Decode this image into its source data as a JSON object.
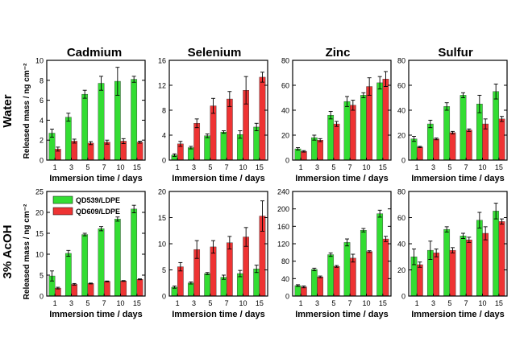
{
  "figure": {
    "columns": [
      "Cadmium",
      "Selenium",
      "Zinc",
      "Sulfur"
    ],
    "rows": [
      "Water",
      "3% AcOH"
    ],
    "xlabel": "Immersion time / days",
    "ylabel": "Released mass / ng cm⁻²",
    "legend": [
      "QD539/LDPE",
      "QD609/LDPE"
    ],
    "colors": {
      "green": "#33dd33",
      "red": "#ee3333",
      "axis": "#000000"
    }
  },
  "chart_data": [
    {
      "type": "bar",
      "title": "Cadmium",
      "row": "Water",
      "ylabel": "Released mass / ng cm⁻²",
      "xlabel": "Immersion time / days",
      "categories": [
        "1",
        "3",
        "5",
        "7",
        "10",
        "15"
      ],
      "ylim": [
        0,
        10
      ],
      "yticks": [
        0,
        2,
        4,
        6,
        8,
        10
      ],
      "series": [
        {
          "name": "QD539/LDPE",
          "values": [
            2.7,
            4.3,
            6.6,
            7.7,
            7.9,
            8.1
          ],
          "errors": [
            0.4,
            0.4,
            0.4,
            0.7,
            1.4,
            0.3
          ]
        },
        {
          "name": "QD609/LDPE",
          "values": [
            1.1,
            1.9,
            1.7,
            1.8,
            1.9,
            1.8
          ],
          "errors": [
            0.2,
            0.2,
            0.15,
            0.2,
            0.25,
            0.1
          ]
        }
      ]
    },
    {
      "type": "bar",
      "title": "Selenium",
      "row": "Water",
      "xlabel": "Immersion time / days",
      "categories": [
        "1",
        "3",
        "5",
        "7",
        "10",
        "15"
      ],
      "ylim": [
        0,
        16
      ],
      "yticks": [
        0,
        4,
        8,
        12,
        16
      ],
      "series": [
        {
          "name": "QD539/LDPE",
          "values": [
            0.8,
            2.0,
            3.9,
            4.5,
            4.1,
            5.3
          ],
          "errors": [
            0.2,
            0.2,
            0.3,
            0.2,
            0.6,
            0.6
          ]
        },
        {
          "name": "QD609/LDPE",
          "values": [
            2.6,
            5.9,
            8.7,
            9.8,
            11.2,
            13.3
          ],
          "errors": [
            0.4,
            0.7,
            1.2,
            1.2,
            2.2,
            0.8
          ]
        }
      ]
    },
    {
      "type": "bar",
      "title": "Zinc",
      "row": "Water",
      "xlabel": "Immersion time / days",
      "categories": [
        "1",
        "3",
        "5",
        "7",
        "10",
        "15"
      ],
      "ylim": [
        0,
        80
      ],
      "yticks": [
        0,
        20,
        40,
        60,
        80
      ],
      "series": [
        {
          "name": "QD539/LDPE",
          "values": [
            9,
            18,
            36,
            47,
            52,
            62
          ],
          "errors": [
            1,
            2,
            3,
            4,
            2,
            5
          ]
        },
        {
          "name": "QD609/LDPE",
          "values": [
            7,
            16,
            29,
            44,
            59,
            65
          ],
          "errors": [
            0.6,
            1.2,
            2,
            4,
            7,
            6
          ]
        }
      ]
    },
    {
      "type": "bar",
      "title": "Sulfur",
      "row": "Water",
      "xlabel": "Immersion time / days",
      "categories": [
        "1",
        "3",
        "5",
        "7",
        "10",
        "15"
      ],
      "ylim": [
        0,
        80
      ],
      "yticks": [
        0,
        20,
        40,
        60,
        80
      ],
      "series": [
        {
          "name": "QD539/LDPE",
          "values": [
            17,
            29,
            43,
            52,
            45,
            55
          ],
          "errors": [
            2,
            3,
            3,
            2,
            7,
            6
          ]
        },
        {
          "name": "QD609/LDPE",
          "values": [
            10.5,
            17,
            22,
            24,
            29,
            33
          ],
          "errors": [
            0.5,
            0.7,
            1,
            1,
            4,
            2
          ]
        }
      ]
    },
    {
      "type": "bar",
      "row": "3% AcOH",
      "ylabel": "Released mass / ng cm⁻²",
      "xlabel": "Immersion time / days",
      "categories": [
        "1",
        "3",
        "5",
        "7",
        "10",
        "15"
      ],
      "ylim": [
        0,
        25
      ],
      "yticks": [
        0,
        5,
        10,
        15,
        20,
        25
      ],
      "series": [
        {
          "name": "QD539/LDPE",
          "values": [
            4.8,
            10.2,
            14.7,
            16.1,
            18.4,
            20.8
          ],
          "errors": [
            1.2,
            0.7,
            0.3,
            0.5,
            0.5,
            0.9
          ]
        },
        {
          "name": "QD609/LDPE",
          "values": [
            1.9,
            2.8,
            3.0,
            3.5,
            3.6,
            4.0
          ],
          "errors": [
            0.2,
            0.2,
            0.1,
            0.1,
            0.1,
            0.1
          ]
        }
      ]
    },
    {
      "type": "bar",
      "row": "3% AcOH",
      "xlabel": "Immersion time / days",
      "categories": [
        "1",
        "3",
        "5",
        "7",
        "10",
        "15"
      ],
      "ylim": [
        0,
        20
      ],
      "yticks": [
        0,
        5,
        10,
        15,
        20
      ],
      "series": [
        {
          "name": "QD539/LDPE",
          "values": [
            1.7,
            2.5,
            4.3,
            3.6,
            4.3,
            5.2
          ],
          "errors": [
            0.2,
            0.2,
            0.2,
            0.4,
            0.6,
            0.7
          ]
        },
        {
          "name": "QD609/LDPE",
          "values": [
            5.6,
            8.9,
            9.4,
            10.2,
            11.3,
            15.3
          ],
          "errors": [
            0.8,
            1.7,
            1.2,
            1.2,
            1.8,
            2.9
          ]
        }
      ]
    },
    {
      "type": "bar",
      "row": "3% AcOH",
      "xlabel": "Immersion time / days",
      "categories": [
        "1",
        "3",
        "5",
        "7",
        "10",
        "15"
      ],
      "ylim": [
        0,
        240
      ],
      "yticks": [
        0,
        40,
        80,
        120,
        160,
        200,
        240
      ],
      "series": [
        {
          "name": "QD539/LDPE",
          "values": [
            24,
            61,
            95,
            123,
            151,
            189
          ],
          "errors": [
            2,
            3,
            4,
            8,
            4,
            8
          ]
        },
        {
          "name": "QD609/LDPE",
          "values": [
            21,
            44,
            68,
            87,
            102,
            131
          ],
          "errors": [
            2,
            2,
            2,
            9,
            2,
            6
          ]
        }
      ]
    },
    {
      "type": "bar",
      "title": "Sulfur",
      "row": "3% AcOH",
      "xlabel": "Immersion time / days",
      "categories": [
        "1",
        "3",
        "5",
        "7",
        "10",
        "15"
      ],
      "ylim": [
        0,
        80
      ],
      "yticks": [
        0,
        20,
        40,
        60,
        80
      ],
      "series": [
        {
          "name": "QD539/LDPE",
          "values": [
            30,
            35,
            51,
            46,
            58,
            65
          ],
          "errors": [
            6,
            7,
            2,
            2,
            6,
            6
          ]
        },
        {
          "name": "QD609/LDPE",
          "values": [
            24,
            33,
            35,
            43,
            48,
            57
          ],
          "errors": [
            2,
            3,
            2,
            2,
            5,
            2
          ]
        }
      ]
    }
  ]
}
